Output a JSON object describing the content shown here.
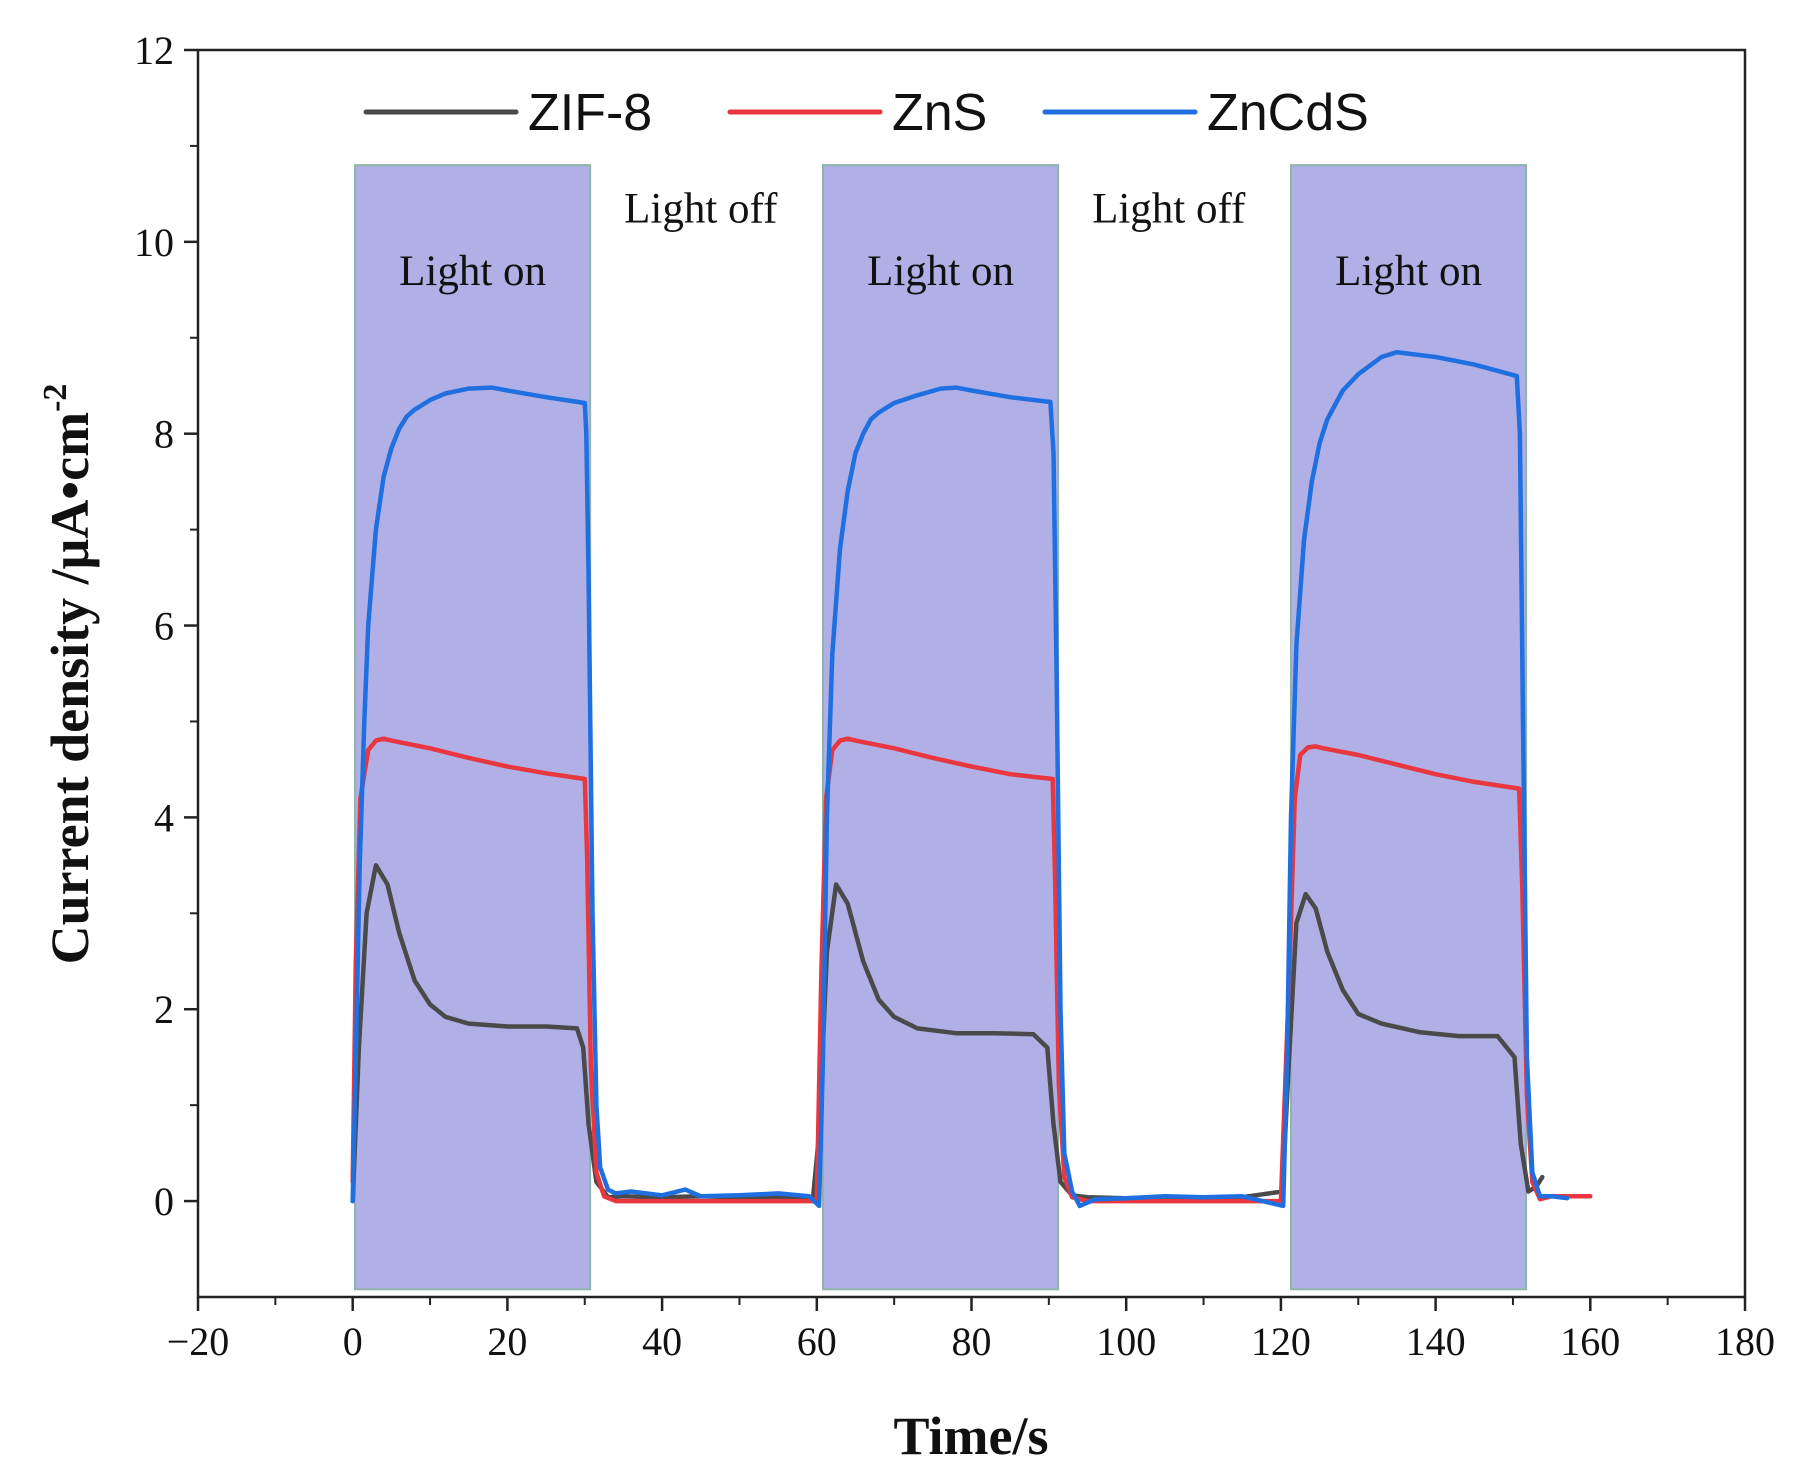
{
  "chart_data": {
    "type": "line",
    "xlabel": "Time/s",
    "ylabel": "Current density /μA•cm",
    "ylabel_superscript": "-2",
    "xlim": [
      -20,
      180
    ],
    "ylim": [
      -1,
      12
    ],
    "x_ticks": [
      -20,
      0,
      20,
      40,
      60,
      80,
      100,
      120,
      140,
      160,
      180
    ],
    "x_tick_labels": [
      "−20",
      "0",
      "20",
      "40",
      "60",
      "80",
      "100",
      "120",
      "140",
      "160",
      "180"
    ],
    "y_ticks": [
      0,
      2,
      4,
      6,
      8,
      10,
      12
    ],
    "y_tick_labels": [
      "0",
      "2",
      "4",
      "6",
      "8",
      "10",
      "12"
    ],
    "legend_position": "top",
    "light_regions": [
      {
        "x0": 0.3,
        "x1": 30.7,
        "label": "Light on"
      },
      {
        "x0": 60.8,
        "x1": 91.2,
        "label": "Light on"
      },
      {
        "x0": 121.3,
        "x1": 151.7,
        "label": "Light on"
      }
    ],
    "annotations": [
      {
        "text": "Light off",
        "x": 45,
        "y": 10.2
      },
      {
        "text": "Light off",
        "x": 105.5,
        "y": 10.2
      }
    ],
    "region_color": "#b0b0e6",
    "series": [
      {
        "name": "ZIF-8",
        "color": "#4a4a4a",
        "x": [
          0,
          0.8,
          1.8,
          3,
          4.5,
          6,
          8,
          10,
          12,
          15,
          20,
          25,
          29,
          29.8,
          30.5,
          31.5,
          33,
          35,
          40,
          45,
          50,
          55,
          59.5,
          60.3,
          61.3,
          62.5,
          64,
          66,
          68,
          70,
          73,
          78,
          83,
          88,
          89.8,
          90.6,
          91.5,
          93,
          95,
          100,
          105,
          110,
          115,
          120.2,
          121,
          122,
          123.2,
          124.5,
          126,
          128,
          130,
          133,
          138,
          143,
          148,
          150.2,
          151,
          152,
          153,
          153.8
        ],
        "y": [
          0,
          1.6,
          3.0,
          3.5,
          3.3,
          2.8,
          2.3,
          2.05,
          1.92,
          1.85,
          1.82,
          1.82,
          1.8,
          1.6,
          0.8,
          0.2,
          0.04,
          0.05,
          0.04,
          0.05,
          0.04,
          0.04,
          0.02,
          0.7,
          2.6,
          3.3,
          3.1,
          2.5,
          2.1,
          1.92,
          1.8,
          1.75,
          1.75,
          1.74,
          1.6,
          0.8,
          0.2,
          0.06,
          0.04,
          0.03,
          0.04,
          0.04,
          0.04,
          0.1,
          1.4,
          2.9,
          3.2,
          3.05,
          2.6,
          2.2,
          1.95,
          1.85,
          1.76,
          1.72,
          1.72,
          1.5,
          0.6,
          0.1,
          0.15,
          0.25
        ]
      },
      {
        "name": "ZnS",
        "color": "#e8373f",
        "x": [
          0,
          0.4,
          1,
          2,
          3,
          4,
          5,
          10,
          15,
          20,
          25,
          30,
          30.3,
          30.8,
          31.5,
          32.5,
          34,
          40,
          50,
          60,
          60.6,
          61.2,
          62,
          63,
          64,
          65,
          70,
          75,
          80,
          85,
          90.5,
          90.8,
          91.3,
          92,
          93,
          95,
          100,
          110,
          120,
          121.1,
          121.8,
          122.5,
          123.5,
          124.5,
          125.5,
          130,
          135,
          140,
          145,
          150.8,
          151.2,
          151.8,
          152.5,
          153.5,
          155,
          160
        ],
        "y": [
          0.2,
          2.5,
          4.2,
          4.7,
          4.8,
          4.82,
          4.8,
          4.72,
          4.62,
          4.53,
          4.46,
          4.4,
          3.6,
          1.4,
          0.3,
          0.05,
          0.0,
          0.0,
          0.0,
          0.0,
          2.4,
          4.2,
          4.7,
          4.8,
          4.82,
          4.8,
          4.72,
          4.62,
          4.53,
          4.45,
          4.4,
          3.4,
          1.2,
          0.25,
          0.04,
          0.0,
          0.0,
          0.0,
          0.0,
          2.4,
          4.2,
          4.65,
          4.73,
          4.74,
          4.72,
          4.65,
          4.55,
          4.45,
          4.37,
          4.3,
          3.3,
          1.1,
          0.2,
          0.02,
          0.05,
          0.05
        ]
      },
      {
        "name": "ZnCdS",
        "color": "#1f6fe0",
        "x": [
          0,
          0.4,
          0.9,
          1.5,
          2,
          3,
          4,
          5,
          6,
          7,
          8,
          10,
          12,
          15,
          18,
          20,
          25,
          30,
          30.2,
          30.5,
          31,
          31.5,
          32,
          33,
          34,
          36,
          40,
          43,
          45,
          50,
          55,
          59,
          60.3,
          60.8,
          61.3,
          62,
          63,
          64,
          65,
          66,
          67,
          68,
          70,
          73,
          76,
          78,
          80,
          85,
          90.2,
          90.6,
          91,
          91.5,
          92,
          93,
          94,
          96,
          100,
          105,
          110,
          115,
          120.3,
          120.8,
          121.3,
          122,
          123,
          124,
          125,
          126,
          128,
          130,
          133,
          135,
          140,
          145,
          150.5,
          150.9,
          151.3,
          151.8,
          152.5,
          153.5,
          155,
          157
        ],
        "y": [
          0,
          1.5,
          3.5,
          5.0,
          6.0,
          7.0,
          7.55,
          7.85,
          8.05,
          8.18,
          8.25,
          8.35,
          8.42,
          8.47,
          8.48,
          8.45,
          8.38,
          8.32,
          8.0,
          6.5,
          3.0,
          1.0,
          0.35,
          0.12,
          0.08,
          0.1,
          0.06,
          0.12,
          0.05,
          0.06,
          0.08,
          0.05,
          -0.05,
          1.5,
          4.0,
          5.7,
          6.8,
          7.4,
          7.8,
          8.0,
          8.15,
          8.22,
          8.32,
          8.4,
          8.47,
          8.48,
          8.45,
          8.38,
          8.33,
          7.8,
          5.5,
          2.0,
          0.5,
          0.1,
          -0.05,
          0.02,
          0.03,
          0.05,
          0.04,
          0.05,
          -0.05,
          1.5,
          4.0,
          5.8,
          6.9,
          7.5,
          7.9,
          8.15,
          8.45,
          8.62,
          8.8,
          8.85,
          8.8,
          8.72,
          8.6,
          8.0,
          5.0,
          1.5,
          0.3,
          0.05,
          0.05,
          0.03
        ]
      }
    ]
  }
}
